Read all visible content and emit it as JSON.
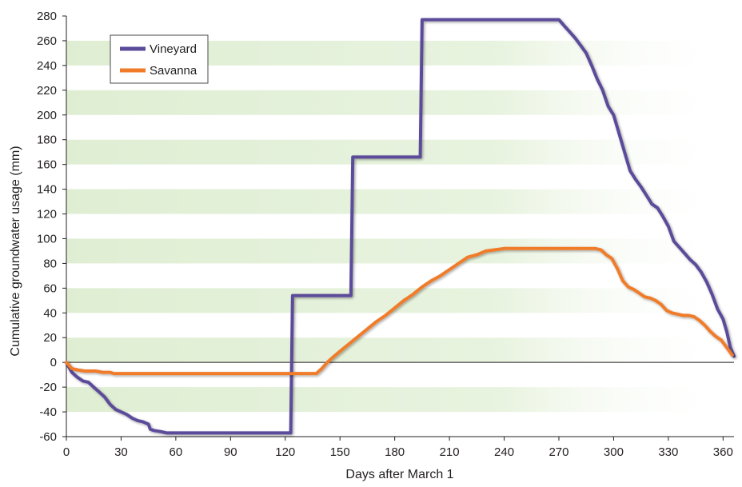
{
  "chart_data": {
    "type": "line",
    "title": "",
    "xlabel": "Days after March 1",
    "ylabel": "Cumulative groundwater usage (mm)",
    "xlim": [
      0,
      366
    ],
    "ylim": [
      -60,
      280
    ],
    "xticks": [
      0,
      30,
      60,
      90,
      120,
      150,
      180,
      210,
      240,
      270,
      300,
      330,
      360
    ],
    "yticks": [
      -60,
      -40,
      -20,
      0,
      20,
      40,
      60,
      80,
      100,
      120,
      140,
      160,
      180,
      200,
      220,
      240,
      260,
      280
    ],
    "background": "alternating light-green horizontal bands every 20 mm, fading to white at the right",
    "grid": false,
    "zero_line": true,
    "legend_position": "top-left",
    "series": [
      {
        "name": "Vineyard",
        "color": "#5b4b9a",
        "points": [
          [
            0,
            0
          ],
          [
            3,
            -8
          ],
          [
            6,
            -12
          ],
          [
            9,
            -15
          ],
          [
            12,
            -16
          ],
          [
            15,
            -20
          ],
          [
            18,
            -24
          ],
          [
            21,
            -28
          ],
          [
            24,
            -34
          ],
          [
            27,
            -38
          ],
          [
            30,
            -40
          ],
          [
            33,
            -42
          ],
          [
            36,
            -45
          ],
          [
            39,
            -47
          ],
          [
            42,
            -48
          ],
          [
            45,
            -50
          ],
          [
            46,
            -54
          ],
          [
            48,
            -55
          ],
          [
            52,
            -56
          ],
          [
            55,
            -57
          ],
          [
            80,
            -57
          ],
          [
            100,
            -57
          ],
          [
            123,
            -57
          ],
          [
            124,
            54
          ],
          [
            156,
            54
          ],
          [
            157,
            166
          ],
          [
            194,
            166
          ],
          [
            195,
            277
          ],
          [
            270,
            277
          ],
          [
            273,
            272
          ],
          [
            276,
            267
          ],
          [
            279,
            262
          ],
          [
            282,
            256
          ],
          [
            285,
            250
          ],
          [
            288,
            240
          ],
          [
            291,
            229
          ],
          [
            294,
            220
          ],
          [
            297,
            207
          ],
          [
            300,
            200
          ],
          [
            303,
            185
          ],
          [
            306,
            170
          ],
          [
            309,
            155
          ],
          [
            312,
            148
          ],
          [
            315,
            142
          ],
          [
            318,
            135
          ],
          [
            321,
            128
          ],
          [
            324,
            125
          ],
          [
            327,
            118
          ],
          [
            330,
            110
          ],
          [
            333,
            98
          ],
          [
            336,
            93
          ],
          [
            339,
            88
          ],
          [
            342,
            83
          ],
          [
            345,
            79
          ],
          [
            348,
            73
          ],
          [
            351,
            65
          ],
          [
            354,
            55
          ],
          [
            357,
            43
          ],
          [
            360,
            35
          ],
          [
            362,
            25
          ],
          [
            364,
            12
          ],
          [
            366,
            5
          ]
        ]
      },
      {
        "name": "Savanna",
        "color": "#f07c2a",
        "points": [
          [
            0,
            0
          ],
          [
            3,
            -5
          ],
          [
            6,
            -6
          ],
          [
            10,
            -7
          ],
          [
            16,
            -7
          ],
          [
            20,
            -8
          ],
          [
            24,
            -8
          ],
          [
            26,
            -9
          ],
          [
            30,
            -9
          ],
          [
            60,
            -9
          ],
          [
            100,
            -9
          ],
          [
            130,
            -9
          ],
          [
            137,
            -9
          ],
          [
            140,
            -5
          ],
          [
            143,
            0
          ],
          [
            146,
            4
          ],
          [
            150,
            9
          ],
          [
            155,
            15
          ],
          [
            160,
            21
          ],
          [
            165,
            27
          ],
          [
            170,
            33
          ],
          [
            175,
            38
          ],
          [
            180,
            44
          ],
          [
            185,
            50
          ],
          [
            190,
            55
          ],
          [
            195,
            61
          ],
          [
            200,
            66
          ],
          [
            205,
            70
          ],
          [
            210,
            75
          ],
          [
            215,
            80
          ],
          [
            220,
            85
          ],
          [
            225,
            87
          ],
          [
            230,
            90
          ],
          [
            235,
            91
          ],
          [
            240,
            92
          ],
          [
            250,
            92
          ],
          [
            260,
            92
          ],
          [
            270,
            92
          ],
          [
            280,
            92
          ],
          [
            290,
            92
          ],
          [
            293,
            91
          ],
          [
            296,
            87
          ],
          [
            299,
            84
          ],
          [
            302,
            76
          ],
          [
            305,
            66
          ],
          [
            308,
            61
          ],
          [
            311,
            59
          ],
          [
            314,
            56
          ],
          [
            317,
            53
          ],
          [
            320,
            52
          ],
          [
            323,
            50
          ],
          [
            326,
            47
          ],
          [
            329,
            42
          ],
          [
            332,
            40
          ],
          [
            335,
            39
          ],
          [
            338,
            38
          ],
          [
            341,
            38
          ],
          [
            344,
            37
          ],
          [
            347,
            34
          ],
          [
            350,
            30
          ],
          [
            353,
            25
          ],
          [
            356,
            21
          ],
          [
            359,
            18
          ],
          [
            362,
            12
          ],
          [
            365,
            6
          ]
        ]
      }
    ]
  }
}
